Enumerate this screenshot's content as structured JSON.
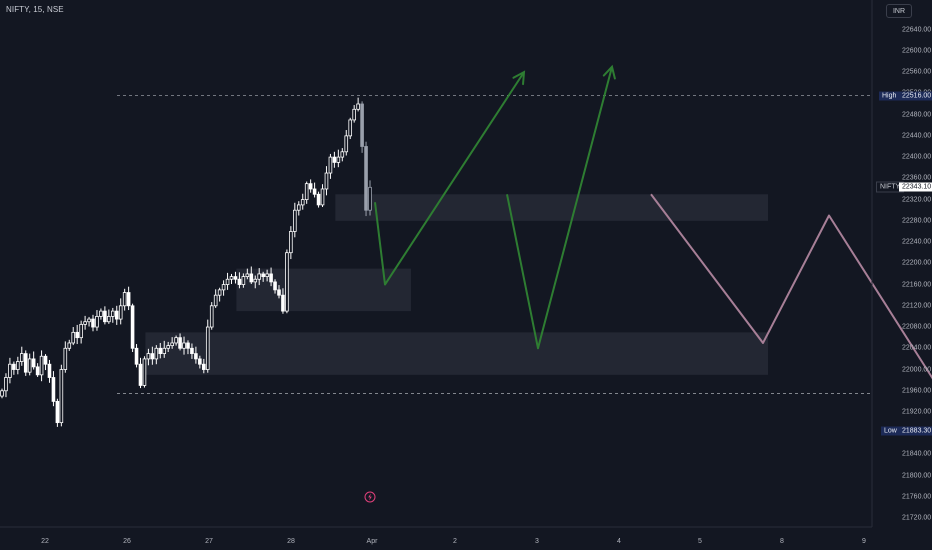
{
  "header": {
    "symbol": "NIFTY, 15, NSE",
    "currency": "INR"
  },
  "axis": {
    "y_ticks": [
      "22640.00",
      "22600.00",
      "22560.00",
      "22520.00",
      "22480.00",
      "22440.00",
      "22400.00",
      "22360.00",
      "22320.00",
      "22280.00",
      "22240.00",
      "22200.00",
      "22160.00",
      "22120.00",
      "22080.00",
      "22040.00",
      "22000.00",
      "21960.00",
      "21920.00",
      "21880.00",
      "21840.00",
      "21800.00",
      "21760.00",
      "21720.00"
    ],
    "x_ticks": [
      "22",
      "26",
      "27",
      "28",
      "Apr",
      "2",
      "3",
      "4",
      "5",
      "8",
      "9"
    ]
  },
  "labels": {
    "high_label": "High",
    "high_value": "22516.00",
    "low_label": "Low",
    "low_value": "21883.30",
    "last_name": "NIFTY",
    "last_value": "22343.10"
  },
  "colors": {
    "background": "#131722",
    "candle_up": "#ffffff",
    "candle_down": "#ffffff",
    "forecast_green": "#2e7d32",
    "forecast_pink": "#a77f97",
    "zone": "#2a2e39"
  },
  "icons": {
    "event": "lightning-icon"
  },
  "chart_data": {
    "type": "candlestick",
    "title": "NIFTY, 15, NSE",
    "x_categories": [
      "22",
      "26",
      "27",
      "28",
      "Apr",
      "2",
      "3",
      "4",
      "5",
      "8",
      "9"
    ],
    "ylim": [
      21700,
      22680
    ],
    "high": 22516.0,
    "low": 21883.3,
    "last_price": 22343.1,
    "close_path": [
      21960,
      21985,
      22010,
      22000,
      22015,
      22030,
      21995,
      22020,
      22005,
      21990,
      22025,
      22010,
      21985,
      21940,
      21900,
      22000,
      22040,
      22050,
      22070,
      22060,
      22085,
      22090,
      22095,
      22080,
      22100,
      22110,
      22090,
      22100,
      22110,
      22095,
      22120,
      22145,
      22120,
      22040,
      22010,
      21970,
      22020,
      22030,
      22020,
      22040,
      22030,
      22040,
      22045,
      22050,
      22060,
      22040,
      22050,
      22040,
      22030,
      22020,
      22010,
      22000,
      22080,
      22120,
      22140,
      22150,
      22160,
      22170,
      22175,
      22170,
      22160,
      22175,
      22180,
      22165,
      22170,
      22180,
      22175,
      22180,
      22165,
      22150,
      22140,
      22110,
      22220,
      22260,
      22300,
      22310,
      22320,
      22350,
      22340,
      22330,
      22310,
      22340,
      22370,
      22400,
      22390,
      22400,
      22410,
      22440,
      22470,
      22490,
      22500,
      22420,
      22300,
      22343.1
    ],
    "zones": [
      {
        "from_idx": 85,
        "to": "5",
        "y_low": 22280,
        "y_high": 22330
      },
      {
        "from_idx": 60,
        "to_idx": 95,
        "y_low": 22110,
        "y_high": 22190
      },
      {
        "from_idx": 37,
        "to": "5",
        "y_low": 21990,
        "y_high": 22070
      }
    ],
    "forecast_paths": [
      {
        "color": "green",
        "points": [
          [
            "Apr",
            22315
          ],
          [
            "Apr",
            22160
          ],
          [
            "2",
            22560
          ]
        ]
      },
      {
        "color": "green",
        "points": [
          [
            "2",
            22330
          ],
          [
            "3",
            22040
          ],
          [
            "4",
            22570
          ]
        ]
      },
      {
        "color": "pink",
        "points": [
          [
            "4",
            22330
          ],
          [
            "5",
            22050
          ],
          [
            "5",
            22290
          ],
          [
            "8",
            21920
          ]
        ]
      }
    ],
    "reference_lines": [
      22516.0,
      21955
    ]
  }
}
